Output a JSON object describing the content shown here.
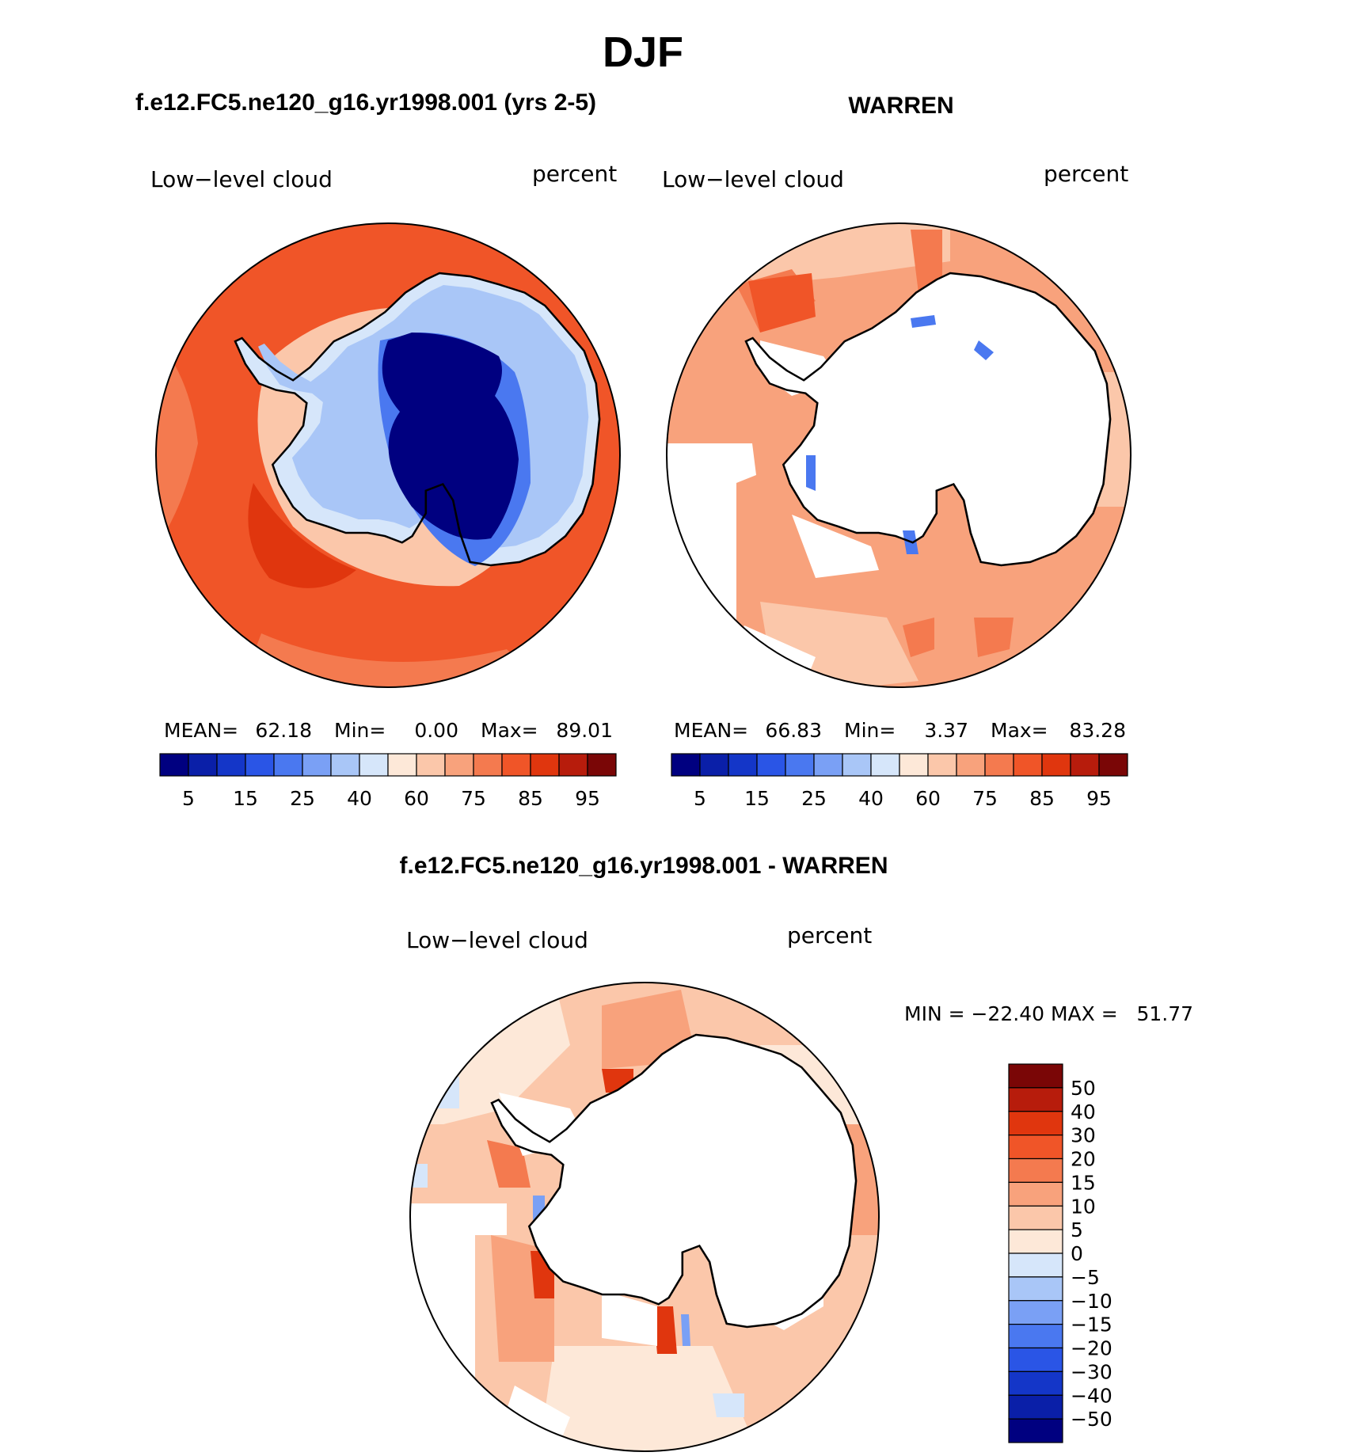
{
  "title": "DJF",
  "panels": [
    {
      "title": "f.e12.FC5.ne120_g16.yr1998.001 (yrs 2-5)",
      "variable": "Low−level cloud",
      "units": "percent",
      "stats": {
        "mean_label": "MEAN=",
        "mean": "62.18",
        "min_label": "Min=",
        "min": "0.00",
        "max_label": "Max=",
        "max": "89.01"
      }
    },
    {
      "title": "WARREN",
      "variable": "Low−level cloud",
      "units": "percent",
      "stats": {
        "mean_label": "MEAN=",
        "mean": "66.83",
        "min_label": "Min=",
        "min": "3.37",
        "max_label": "Max=",
        "max": "83.28"
      }
    },
    {
      "title": "f.e12.FC5.ne120_g16.yr1998.001 - WARREN",
      "variable": "Low−level cloud",
      "units": "percent",
      "minmax_text": "MIN = −22.40 MAX =   51.77"
    }
  ],
  "colorbar_abs": {
    "colors": [
      "#000080",
      "#0a1fa8",
      "#1436c8",
      "#2a55e6",
      "#4a78f0",
      "#7aa0f5",
      "#a9c6f7",
      "#d6e6fa",
      "#fde8d8",
      "#fbc7aa",
      "#f8a27c",
      "#f47a4f",
      "#f05528",
      "#e0360e",
      "#b71c0c",
      "#7a0606"
    ],
    "tick_labels": [
      "5",
      "15",
      "25",
      "40",
      "60",
      "75",
      "85",
      "95"
    ]
  },
  "colorbar_diff": {
    "colors": [
      "#000080",
      "#0a1fa8",
      "#1436c8",
      "#2a55e6",
      "#4a78f0",
      "#7aa0f5",
      "#a9c6f7",
      "#d6e6fa",
      "#fde8d8",
      "#fbc7aa",
      "#f8a27c",
      "#f47a4f",
      "#f05528",
      "#e0360e",
      "#b71c0c",
      "#7a0606"
    ],
    "tick_labels": [
      "50",
      "40",
      "30",
      "20",
      "15",
      "10",
      "5",
      "0",
      "−5",
      "−10",
      "−15",
      "−20",
      "−30",
      "−40",
      "−50"
    ]
  },
  "field_colors": {
    "coast": "#000000",
    "missing": "#ffffff",
    "model_ocean": "#f05528",
    "model_ocean_light": "#f47a4f",
    "model_peak": "#e0360e",
    "model_shelf": "#fbc7aa",
    "model_ice1": "#d6e6fa",
    "model_ice2": "#a9c6f7",
    "model_ice3": "#4a78f0",
    "model_plateau": "#000080",
    "obs_base": "#f8a27c",
    "obs_light": "#fbc7aa",
    "obs_dark": "#f47a4f",
    "obs_peak": "#f05528",
    "obs_blue": "#4a78f0",
    "diff_base": "#fbc7aa",
    "diff_light": "#fde8d8",
    "diff_mid": "#f8a27c",
    "diff_high": "#f47a4f",
    "diff_peak": "#e0360e",
    "diff_neg": "#d6e6fa",
    "diff_neg2": "#7aa0f5"
  }
}
